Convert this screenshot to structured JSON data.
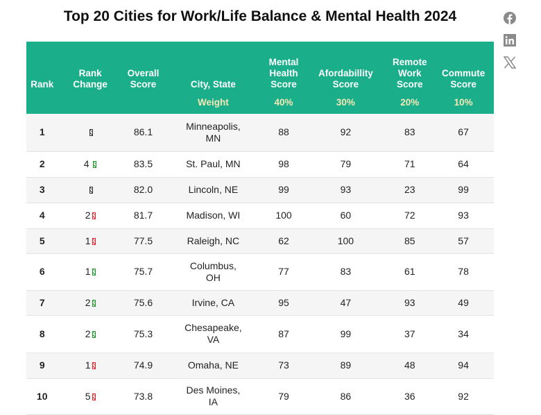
{
  "title": "Top 20 Cities for Work/Life Balance & Mental Health 2024",
  "social": [
    "facebook-icon",
    "linkedin-icon",
    "x-icon"
  ],
  "colors": {
    "header": "#1aae8b",
    "weight_text": "#f5e9b4",
    "up": "#1a9a2a",
    "down": "#e8202a"
  },
  "headers": {
    "rank": "Rank",
    "rank_change": "Rank Change",
    "overall": "Overall Score",
    "city": "City, State",
    "mental": "Mental Health Score",
    "afford": "Afordabillity Score",
    "remote": "Remote Work Score",
    "commute": "Commute Score"
  },
  "weights": {
    "label": "Weight",
    "mental": "40%",
    "afford": "30%",
    "remote": "20%",
    "commute": "10%"
  },
  "rows": [
    {
      "rank": "1",
      "change": "",
      "dir": "same",
      "overall": "86.1",
      "city": "Minneapolis, MN",
      "mental": "88",
      "afford": "92",
      "remote": "83",
      "commute": "67"
    },
    {
      "rank": "2",
      "change": "4 ",
      "dir": "up",
      "overall": "83.5",
      "city": "St. Paul, MN",
      "mental": "98",
      "afford": "79",
      "remote": "71",
      "commute": "64"
    },
    {
      "rank": "3",
      "change": "",
      "dir": "same",
      "overall": "82.0",
      "city": "Lincoln, NE",
      "mental": "99",
      "afford": "93",
      "remote": "23",
      "commute": "99"
    },
    {
      "rank": "4",
      "change": "2",
      "dir": "down",
      "overall": "81.7",
      "city": "Madison, WI",
      "mental": "100",
      "afford": "60",
      "remote": "72",
      "commute": "93"
    },
    {
      "rank": "5",
      "change": "1",
      "dir": "down",
      "overall": "77.5",
      "city": "Raleigh, NC",
      "mental": "62",
      "afford": "100",
      "remote": "85",
      "commute": "57"
    },
    {
      "rank": "6",
      "change": "1",
      "dir": "up",
      "overall": "75.7",
      "city": "Columbus, OH",
      "mental": "77",
      "afford": "83",
      "remote": "61",
      "commute": "78"
    },
    {
      "rank": "7",
      "change": "2",
      "dir": "up",
      "overall": "75.6",
      "city": "Irvine, CA",
      "mental": "95",
      "afford": "47",
      "remote": "93",
      "commute": "49"
    },
    {
      "rank": "8",
      "change": "2",
      "dir": "up",
      "overall": "75.3",
      "city": "Chesapeake, VA",
      "mental": "87",
      "afford": "99",
      "remote": "37",
      "commute": "34"
    },
    {
      "rank": "9",
      "change": "1",
      "dir": "down",
      "overall": "74.9",
      "city": "Omaha, NE",
      "mental": "73",
      "afford": "89",
      "remote": "48",
      "commute": "94"
    },
    {
      "rank": "10",
      "change": "5",
      "dir": "down",
      "overall": "73.8",
      "city": "Des Moines, IA",
      "mental": "79",
      "afford": "86",
      "remote": "36",
      "commute": "92"
    }
  ]
}
